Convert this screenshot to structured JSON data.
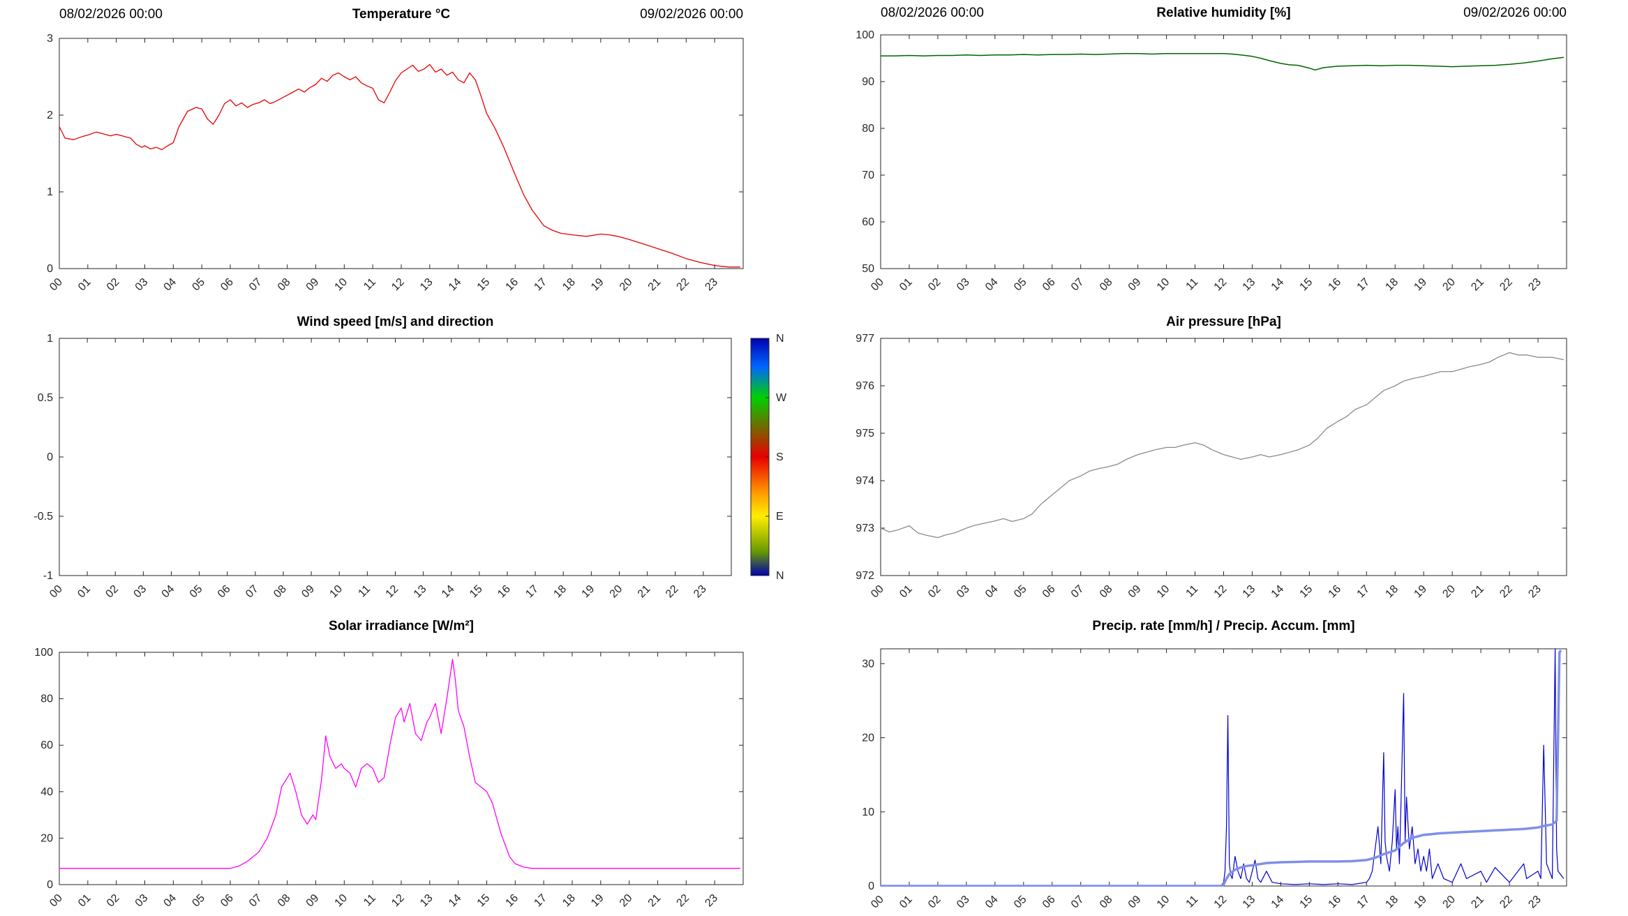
{
  "figure": {
    "background": "#ffffff",
    "axis_color": "#262626",
    "tick_color": "#262626"
  },
  "xticks": {
    "values": [
      0,
      1,
      2,
      3,
      4,
      5,
      6,
      7,
      8,
      9,
      10,
      11,
      12,
      13,
      14,
      15,
      16,
      17,
      18,
      19,
      20,
      21,
      22,
      23
    ],
    "labels": [
      "00",
      "01",
      "02",
      "03",
      "04",
      "05",
      "06",
      "07",
      "08",
      "09",
      "10",
      "11",
      "12",
      "13",
      "14",
      "15",
      "16",
      "17",
      "18",
      "19",
      "20",
      "21",
      "22",
      "23"
    ]
  },
  "chart_data": [
    {
      "id": "temperature",
      "type": "line",
      "title": "Temperature °C",
      "date_left": "08/02/2026 00:00",
      "date_right": "09/02/2026 00:00",
      "xlim": [
        0,
        24
      ],
      "ylim": [
        0,
        3
      ],
      "ytick_values": [
        0,
        1,
        2,
        3
      ],
      "ytick_labels": [
        "0",
        "1",
        "2",
        "3"
      ],
      "series": [
        {
          "name": "temperature",
          "color": "#e60000",
          "width": 1.3,
          "x": [
            0,
            0.2,
            0.5,
            0.8,
            1,
            1.3,
            1.5,
            1.8,
            2,
            2.3,
            2.5,
            2.7,
            2.9,
            3,
            3.2,
            3.4,
            3.6,
            3.8,
            4,
            4.2,
            4.5,
            4.8,
            5,
            5.2,
            5.4,
            5.6,
            5.8,
            6,
            6.2,
            6.4,
            6.6,
            6.8,
            7,
            7.2,
            7.4,
            7.6,
            7.8,
            8,
            8.2,
            8.4,
            8.6,
            8.8,
            9,
            9.2,
            9.4,
            9.6,
            9.8,
            10,
            10.2,
            10.4,
            10.6,
            10.8,
            11,
            11.2,
            11.4,
            11.6,
            11.8,
            12,
            12.2,
            12.4,
            12.6,
            12.8,
            13,
            13.2,
            13.4,
            13.6,
            13.8,
            14,
            14.2,
            14.4,
            14.6,
            14.8,
            15,
            15.3,
            15.6,
            16,
            16.3,
            16.6,
            17,
            17.3,
            17.6,
            18,
            18.5,
            19,
            19.3,
            19.6,
            20,
            20.5,
            21,
            21.5,
            22,
            22.5,
            23,
            23.5,
            23.9
          ],
          "y": [
            1.85,
            1.7,
            1.68,
            1.72,
            1.74,
            1.78,
            1.76,
            1.73,
            1.75,
            1.72,
            1.7,
            1.62,
            1.58,
            1.6,
            1.56,
            1.58,
            1.55,
            1.6,
            1.64,
            1.85,
            2.05,
            2.1,
            2.08,
            1.95,
            1.88,
            2.0,
            2.15,
            2.2,
            2.12,
            2.16,
            2.1,
            2.14,
            2.16,
            2.2,
            2.15,
            2.18,
            2.22,
            2.26,
            2.3,
            2.34,
            2.3,
            2.36,
            2.4,
            2.48,
            2.44,
            2.52,
            2.55,
            2.5,
            2.46,
            2.5,
            2.42,
            2.38,
            2.35,
            2.2,
            2.16,
            2.3,
            2.45,
            2.55,
            2.6,
            2.65,
            2.57,
            2.6,
            2.66,
            2.56,
            2.6,
            2.52,
            2.56,
            2.46,
            2.42,
            2.55,
            2.46,
            2.25,
            2.02,
            1.82,
            1.58,
            1.22,
            0.96,
            0.76,
            0.56,
            0.5,
            0.46,
            0.44,
            0.42,
            0.45,
            0.44,
            0.42,
            0.38,
            0.32,
            0.26,
            0.2,
            0.13,
            0.08,
            0.04,
            0.02,
            0.02
          ]
        }
      ]
    },
    {
      "id": "relative_humidity",
      "type": "line",
      "title": "Relative humidity [%]",
      "date_left": "08/02/2026 00:00",
      "date_right": "09/02/2026 00:00",
      "xlim": [
        0,
        24
      ],
      "ylim": [
        50,
        100
      ],
      "ytick_values": [
        50,
        60,
        70,
        80,
        90,
        100
      ],
      "ytick_labels": [
        "50",
        "60",
        "70",
        "80",
        "90",
        "100"
      ],
      "series": [
        {
          "name": "relative_humidity",
          "color": "#006400",
          "width": 1.5,
          "x": [
            0,
            0.5,
            1,
            1.5,
            2,
            2.5,
            3,
            3.5,
            4,
            4.5,
            5,
            5.5,
            6,
            6.5,
            7,
            7.5,
            8,
            8.5,
            9,
            9.5,
            10,
            10.5,
            11,
            11.5,
            12,
            12.3,
            12.6,
            13,
            13.3,
            13.6,
            14,
            14.3,
            14.6,
            15,
            15.2,
            15.5,
            16,
            16.5,
            17,
            17.5,
            18,
            18.5,
            19,
            19.5,
            20,
            20.5,
            21,
            21.5,
            22,
            22.5,
            23,
            23.5,
            23.9
          ],
          "y": [
            95.5,
            95.5,
            95.6,
            95.5,
            95.6,
            95.6,
            95.7,
            95.6,
            95.7,
            95.7,
            95.8,
            95.7,
            95.8,
            95.8,
            95.9,
            95.8,
            95.9,
            96.0,
            96.0,
            95.9,
            96.0,
            96.0,
            96.0,
            96.0,
            96.0,
            95.9,
            95.7,
            95.4,
            95.0,
            94.5,
            93.9,
            93.6,
            93.5,
            92.9,
            92.5,
            93.0,
            93.3,
            93.4,
            93.5,
            93.4,
            93.5,
            93.5,
            93.4,
            93.3,
            93.2,
            93.3,
            93.4,
            93.5,
            93.7,
            94.0,
            94.4,
            94.9,
            95.2
          ]
        }
      ]
    },
    {
      "id": "wind",
      "type": "line",
      "title": "Wind speed [m/s] and direction",
      "xlim": [
        0,
        24
      ],
      "ylim": [
        -1,
        1
      ],
      "ytick_values": [
        -1,
        -0.5,
        0,
        0.5,
        1
      ],
      "ytick_labels": [
        "-1",
        "-0.5",
        "0",
        "0.5",
        "1"
      ],
      "series": [],
      "colorbar": {
        "labels": [
          "N",
          "W",
          "S",
          "E",
          "N"
        ],
        "stops": [
          {
            "offset": 0,
            "color": "#0000b0"
          },
          {
            "offset": 0.12,
            "color": "#0066ff"
          },
          {
            "offset": 0.25,
            "color": "#00d000"
          },
          {
            "offset": 0.5,
            "color": "#e80000"
          },
          {
            "offset": 0.65,
            "color": "#ff9900"
          },
          {
            "offset": 0.75,
            "color": "#ffee00"
          },
          {
            "offset": 0.9,
            "color": "#669900"
          },
          {
            "offset": 1,
            "color": "#0000b0"
          }
        ]
      }
    },
    {
      "id": "air_pressure",
      "type": "line",
      "title": "Air pressure [hPa]",
      "xlim": [
        0,
        24
      ],
      "ylim": [
        972,
        977
      ],
      "ytick_values": [
        972,
        973,
        974,
        975,
        976,
        977
      ],
      "ytick_labels": [
        "972",
        "973",
        "974",
        "975",
        "976",
        "977"
      ],
      "series": [
        {
          "name": "air_pressure",
          "color": "#8a8a8a",
          "width": 1.3,
          "x": [
            0,
            0.3,
            0.6,
            1,
            1.3,
            1.6,
            2,
            2.3,
            2.6,
            3,
            3.3,
            3.6,
            4,
            4.3,
            4.6,
            5,
            5.3,
            5.6,
            6,
            6.3,
            6.6,
            7,
            7.3,
            7.6,
            8,
            8.3,
            8.6,
            9,
            9.3,
            9.6,
            10,
            10.3,
            10.6,
            11,
            11.3,
            11.6,
            12,
            12.3,
            12.6,
            13,
            13.3,
            13.6,
            14,
            14.3,
            14.6,
            15,
            15.3,
            15.6,
            16,
            16.3,
            16.6,
            17,
            17.3,
            17.6,
            18,
            18.3,
            18.6,
            19,
            19.3,
            19.6,
            20,
            20.3,
            20.6,
            21,
            21.3,
            21.6,
            22,
            22.3,
            22.6,
            23,
            23.5,
            23.9
          ],
          "y": [
            973.0,
            972.92,
            972.96,
            973.05,
            972.9,
            972.85,
            972.8,
            972.86,
            972.9,
            973.0,
            973.06,
            973.1,
            973.15,
            973.2,
            973.14,
            973.2,
            973.3,
            973.5,
            973.7,
            973.85,
            974.0,
            974.1,
            974.2,
            974.25,
            974.3,
            974.35,
            974.45,
            974.55,
            974.6,
            974.65,
            974.7,
            974.7,
            974.75,
            974.8,
            974.75,
            974.65,
            974.55,
            974.5,
            974.45,
            974.5,
            974.55,
            974.5,
            974.55,
            974.6,
            974.65,
            974.75,
            974.9,
            975.1,
            975.25,
            975.35,
            975.5,
            975.6,
            975.75,
            975.9,
            976.0,
            976.1,
            976.15,
            976.2,
            976.25,
            976.3,
            976.3,
            976.35,
            976.4,
            976.45,
            976.5,
            976.6,
            976.7,
            976.65,
            976.65,
            976.6,
            976.6,
            976.55
          ]
        }
      ]
    },
    {
      "id": "solar_irradiance",
      "type": "line",
      "title": "Solar irradiance [W/m²]",
      "xlim": [
        0,
        24
      ],
      "ylim": [
        0,
        100
      ],
      "ytick_values": [
        0,
        20,
        40,
        60,
        80,
        100
      ],
      "ytick_labels": [
        "0",
        "20",
        "40",
        "60",
        "80",
        "100"
      ],
      "series": [
        {
          "name": "solar_irradiance",
          "color": "#ff00ff",
          "width": 1.3,
          "x": [
            0,
            1,
            2,
            3,
            4,
            5,
            5.5,
            6,
            6.3,
            6.6,
            7,
            7.3,
            7.6,
            7.8,
            8,
            8.1,
            8.3,
            8.5,
            8.7,
            8.9,
            9,
            9.2,
            9.35,
            9.5,
            9.7,
            9.9,
            10,
            10.2,
            10.4,
            10.6,
            10.8,
            11,
            11.2,
            11.4,
            11.6,
            11.8,
            12,
            12.1,
            12.3,
            12.5,
            12.7,
            12.9,
            13,
            13.2,
            13.4,
            13.6,
            13.8,
            13.9,
            14,
            14.2,
            14.4,
            14.6,
            14.8,
            15,
            15.2,
            15.5,
            15.8,
            16,
            16.3,
            16.6,
            17,
            18,
            19,
            20,
            21,
            22,
            23,
            23.9
          ],
          "y": [
            7,
            7,
            7,
            7,
            7,
            7,
            7,
            7,
            8,
            10,
            14,
            20,
            30,
            42,
            46,
            48,
            40,
            30,
            26,
            30,
            28,
            45,
            64,
            55,
            50,
            52,
            50,
            48,
            42,
            50,
            52,
            50,
            44,
            46,
            60,
            72,
            76,
            70,
            78,
            65,
            62,
            70,
            72,
            78,
            65,
            80,
            97,
            88,
            75,
            68,
            55,
            44,
            42,
            40,
            35,
            22,
            12,
            9,
            7.5,
            7,
            7,
            7,
            7,
            7,
            7,
            7,
            7,
            7
          ]
        }
      ]
    },
    {
      "id": "precipitation",
      "type": "line",
      "title": "Precip. rate [mm/h] / Precip. Accum. [mm]",
      "xlim": [
        0,
        24
      ],
      "ylim": [
        0,
        32
      ],
      "ytick_values": [
        0,
        10,
        20,
        30
      ],
      "ytick_labels": [
        "0",
        "10",
        "20",
        "30"
      ],
      "series": [
        {
          "name": "precip_rate",
          "color": "#0000cd",
          "width": 1.2,
          "x": [
            0,
            2,
            4,
            6,
            8,
            10,
            11,
            11.5,
            11.9,
            12.0,
            12.05,
            12.1,
            12.15,
            12.2,
            12.25,
            12.3,
            12.4,
            12.5,
            12.6,
            12.7,
            12.8,
            12.9,
            13,
            13.1,
            13.2,
            13.3,
            13.5,
            13.7,
            14,
            14.5,
            15,
            15.5,
            16,
            16.5,
            17,
            17.1,
            17.2,
            17.3,
            17.4,
            17.5,
            17.6,
            17.65,
            17.7,
            17.8,
            17.9,
            18,
            18.05,
            18.1,
            18.15,
            18.2,
            18.3,
            18.35,
            18.4,
            18.5,
            18.6,
            18.7,
            18.8,
            18.9,
            19,
            19.1,
            19.2,
            19.3,
            19.5,
            19.7,
            20,
            20.3,
            20.5,
            21,
            21.2,
            21.5,
            22,
            22.3,
            22.5,
            22.6,
            23,
            23.1,
            23.2,
            23.3,
            23.5,
            23.6,
            23.65,
            23.7,
            23.9
          ],
          "y": [
            0,
            0,
            0,
            0,
            0,
            0,
            0,
            0,
            0,
            0.5,
            2,
            8,
            23,
            3,
            1.5,
            1,
            4,
            2,
            1,
            3,
            1,
            0.5,
            2,
            3.5,
            1,
            0.5,
            2,
            0.5,
            0.3,
            0.2,
            0.3,
            0.2,
            0.3,
            0.2,
            0.5,
            1,
            2,
            5,
            8,
            3,
            18,
            6,
            4,
            2,
            6,
            13,
            5,
            8,
            3,
            10,
            26,
            6,
            12,
            5,
            8,
            3,
            5,
            2,
            4,
            2,
            5,
            1,
            3,
            1,
            0.5,
            3,
            1,
            2,
            0.5,
            2.5,
            0.5,
            2,
            3,
            1,
            2,
            1,
            19,
            3,
            1,
            32,
            5,
            2,
            1
          ]
        },
        {
          "name": "precip_accum",
          "color": "#8090e8",
          "width": 3.5,
          "x": [
            0,
            2,
            4,
            6,
            8,
            10,
            11,
            11.9,
            12,
            12.1,
            12.2,
            12.4,
            12.6,
            12.8,
            13,
            13.5,
            14,
            14.5,
            15,
            15.5,
            16,
            16.5,
            17,
            17.3,
            17.6,
            18,
            18.3,
            18.5,
            18.7,
            19,
            19.3,
            19.5,
            20,
            20.5,
            21,
            21.5,
            22,
            22.5,
            23,
            23.2,
            23.5,
            23.65,
            23.75,
            23.8
          ],
          "y": [
            0,
            0,
            0,
            0,
            0,
            0,
            0,
            0,
            0.2,
            1.0,
            1.6,
            2.2,
            2.5,
            2.7,
            2.8,
            3.1,
            3.2,
            3.25,
            3.3,
            3.3,
            3.3,
            3.35,
            3.5,
            3.8,
            4.3,
            4.8,
            5.8,
            6.3,
            6.6,
            6.9,
            7.0,
            7.1,
            7.2,
            7.3,
            7.4,
            7.5,
            7.6,
            7.7,
            7.9,
            8.1,
            8.3,
            8.8,
            31.5,
            31.8
          ]
        }
      ]
    }
  ]
}
